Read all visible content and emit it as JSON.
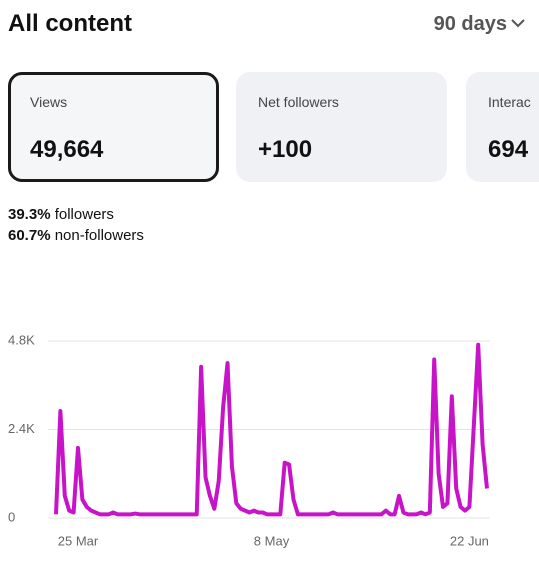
{
  "header": {
    "title": "All content",
    "period": "90 days"
  },
  "cards": [
    {
      "label": "Views",
      "value": "49,664"
    },
    {
      "label": "Net followers",
      "value": "+100"
    },
    {
      "label": "Interac",
      "value": "694"
    }
  ],
  "breakdown": [
    {
      "percent": "39.3%",
      "label": "followers"
    },
    {
      "percent": "60.7%",
      "label": "non-followers"
    }
  ],
  "chart_data": {
    "type": "line",
    "x": [
      0,
      1,
      2,
      3,
      4,
      5,
      6,
      7,
      8,
      9,
      10,
      11,
      12,
      13,
      14,
      15,
      16,
      17,
      18,
      19,
      20,
      21,
      22,
      23,
      24,
      25,
      26,
      27,
      28,
      29,
      30,
      31,
      32,
      33,
      34,
      35,
      36,
      37,
      38,
      39,
      40,
      41,
      42,
      43,
      44,
      45,
      46,
      47,
      48,
      49,
      50,
      51,
      52,
      53,
      54,
      55,
      56,
      57,
      58,
      59,
      60,
      61,
      62,
      63,
      64,
      65,
      66,
      67,
      68,
      69,
      70,
      71,
      72,
      73,
      74,
      75,
      76,
      77,
      78,
      79,
      80,
      81,
      82,
      83,
      84,
      85,
      86,
      87,
      88,
      89,
      90,
      91,
      92,
      93,
      94,
      95,
      96,
      97,
      98
    ],
    "series": [
      {
        "name": "Views",
        "color": "#c814c8",
        "values": [
          100,
          2900,
          600,
          200,
          150,
          1900,
          500,
          300,
          200,
          150,
          100,
          100,
          100,
          150,
          100,
          100,
          100,
          100,
          120,
          100,
          100,
          100,
          100,
          100,
          100,
          100,
          100,
          100,
          100,
          100,
          100,
          100,
          100,
          4100,
          1100,
          600,
          250,
          1000,
          3000,
          4200,
          1400,
          400,
          250,
          200,
          150,
          200,
          150,
          150,
          100,
          100,
          100,
          100,
          1500,
          1450,
          500,
          100,
          100,
          100,
          100,
          100,
          100,
          100,
          100,
          150,
          100,
          100,
          100,
          100,
          100,
          100,
          100,
          100,
          100,
          100,
          100,
          200,
          100,
          100,
          600,
          150,
          100,
          100,
          100,
          150,
          100,
          150,
          4300,
          1200,
          300,
          400,
          3300,
          800,
          300,
          200,
          300,
          2500,
          4700,
          2000,
          800
        ]
      }
    ],
    "xlim": [
      0,
      98
    ],
    "xticks": [
      {
        "value": 5,
        "label": "25 Mar"
      },
      {
        "value": 49,
        "label": "8 May"
      },
      {
        "value": 94,
        "label": "22 Jun"
      }
    ],
    "ylim": [
      0,
      4800
    ],
    "yticks": [
      0,
      {
        "value": 2400,
        "label": "2.4K"
      },
      {
        "value": 4800,
        "label": "4.8K"
      }
    ],
    "grid": true
  }
}
